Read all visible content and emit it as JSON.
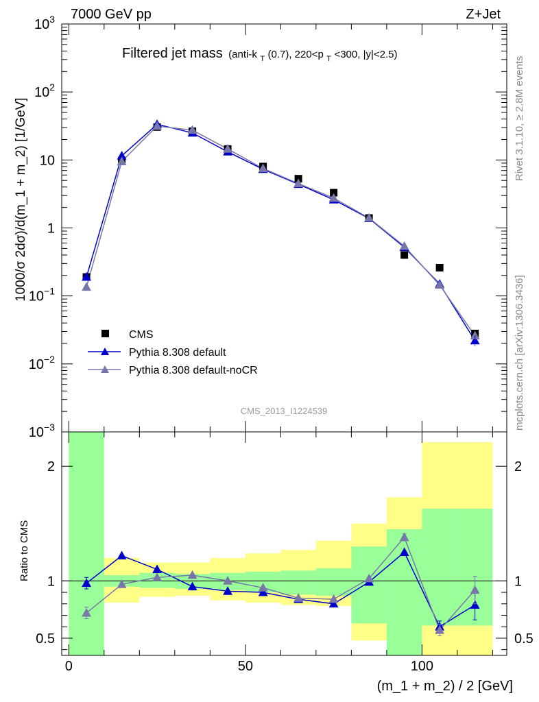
{
  "header": {
    "left_label": "7000 GeV pp",
    "right_label": "Z+Jet"
  },
  "side_labels": {
    "rivet": "Rivet 3.1.10, ≥ 2.8M events",
    "mcplots": "mcplots.cern.ch [arXiv:1306.3436]"
  },
  "watermark": "CMS_2013_I1224539",
  "colors": {
    "data": "#000000",
    "default": "#0000cc",
    "nocr": "#7777aa",
    "band_inner": "#99ff99",
    "band_outer": "#ffff88"
  },
  "chart_data": [
    {
      "type": "scatter",
      "title": "Filtered jet mass",
      "title_suffix": {
        "pre": "(anti-k",
        "sub1": "T",
        "mid": "(0.7), 220<p",
        "sub2": "T",
        "post": "<300, |y|<2.5)"
      },
      "ylabel": "1000/σ 2dσ)/d(m_1 + m_2) [1/GeV]",
      "yscale": "log",
      "ylim": [
        0.001,
        1000
      ],
      "ytick_labels": [
        {
          "base": "10",
          "exp": "−3"
        },
        {
          "base": "10",
          "exp": "−2"
        },
        {
          "base": "10",
          "exp": "−1"
        },
        {
          "base": "1",
          "exp": ""
        },
        {
          "base": "10",
          "exp": ""
        },
        {
          "base": "10",
          "exp": "2"
        },
        {
          "base": "10",
          "exp": "3"
        }
      ],
      "xlim": [
        -2,
        124
      ],
      "x": [
        5,
        15,
        25,
        35,
        45,
        55,
        65,
        75,
        85,
        95,
        105,
        115
      ],
      "series": [
        {
          "name": "CMS",
          "style": "square",
          "values": [
            0.19,
            9.8,
            30.5,
            26.5,
            14.5,
            8.0,
            5.3,
            3.3,
            1.4,
            0.4,
            0.26,
            0.028
          ]
        },
        {
          "name": "Pythia 8.308 default",
          "style": "line-triangle",
          "values": [
            0.19,
            11.5,
            33.5,
            25.0,
            13.2,
            7.3,
            4.4,
            2.6,
            1.38,
            0.52,
            0.15,
            0.022
          ]
        },
        {
          "name": "Pythia 8.308 default-noCR",
          "style": "line-triangle",
          "values": [
            0.135,
            9.5,
            31.5,
            27.5,
            14.5,
            7.5,
            4.5,
            2.75,
            1.4,
            0.54,
            0.145,
            0.026
          ]
        }
      ],
      "legend_position": "bottom-left"
    },
    {
      "type": "line",
      "ylabel": "Ratio to CMS",
      "xlabel": "(m_1 + m_2) / 2 [GeV]",
      "xlim": [
        -2,
        124
      ],
      "ylim": [
        0.35,
        2.3
      ],
      "yticks": [
        0.5,
        1,
        2
      ],
      "ytick_labels": [
        "0.5",
        "1",
        "2"
      ],
      "xticks": [
        0,
        50,
        100
      ],
      "xtick_labels": [
        "0",
        "50",
        "100"
      ],
      "x": [
        5,
        15,
        25,
        35,
        45,
        55,
        65,
        75,
        85,
        95,
        105,
        115
      ],
      "bins": [
        [
          0,
          10
        ],
        [
          10,
          20
        ],
        [
          20,
          30
        ],
        [
          30,
          40
        ],
        [
          40,
          50
        ],
        [
          50,
          60
        ],
        [
          60,
          70
        ],
        [
          70,
          80
        ],
        [
          80,
          90
        ],
        [
          90,
          100
        ],
        [
          100,
          110
        ],
        [
          110,
          120
        ]
      ],
      "band_inner": [
        [
          0.35,
          2.3
        ],
        [
          0.95,
          1.05
        ],
        [
          0.94,
          1.07
        ],
        [
          0.93,
          1.06
        ],
        [
          0.92,
          1.07
        ],
        [
          0.9,
          1.08
        ],
        [
          0.88,
          1.09
        ],
        [
          0.87,
          1.11
        ],
        [
          0.63,
          1.3
        ],
        [
          0.35,
          1.45
        ],
        [
          0.61,
          1.63
        ],
        [
          0.61,
          1.63
        ]
      ],
      "band_outer": [
        [
          0.35,
          2.3
        ],
        [
          0.81,
          1.2
        ],
        [
          0.86,
          1.16
        ],
        [
          0.87,
          1.16
        ],
        [
          0.83,
          1.2
        ],
        [
          0.81,
          1.24
        ],
        [
          0.79,
          1.27
        ],
        [
          0.78,
          1.35
        ],
        [
          0.48,
          1.5
        ],
        [
          0.35,
          1.73
        ],
        [
          0.35,
          2.21
        ],
        [
          0.35,
          2.21
        ]
      ],
      "series": [
        {
          "name": "Pythia 8.308 default",
          "values": [
            0.98,
            1.22,
            1.1,
            0.95,
            0.91,
            0.9,
            0.84,
            0.8,
            0.99,
            1.25,
            0.6,
            0.79
          ],
          "errors": [
            0.05,
            0.0,
            0.0,
            0.0,
            0.0,
            0.0,
            0.0,
            0.0,
            0.0,
            0.0,
            0.05,
            0.13
          ]
        },
        {
          "name": "Pythia 8.308 default-noCR",
          "values": [
            0.72,
            0.97,
            1.03,
            1.05,
            1.0,
            0.94,
            0.85,
            0.84,
            1.02,
            1.38,
            0.57,
            0.92
          ],
          "errors": [
            0.05,
            0.0,
            0.0,
            0.0,
            0.0,
            0.0,
            0.0,
            0.0,
            0.0,
            0.03,
            0.05,
            0.12
          ]
        }
      ]
    }
  ]
}
